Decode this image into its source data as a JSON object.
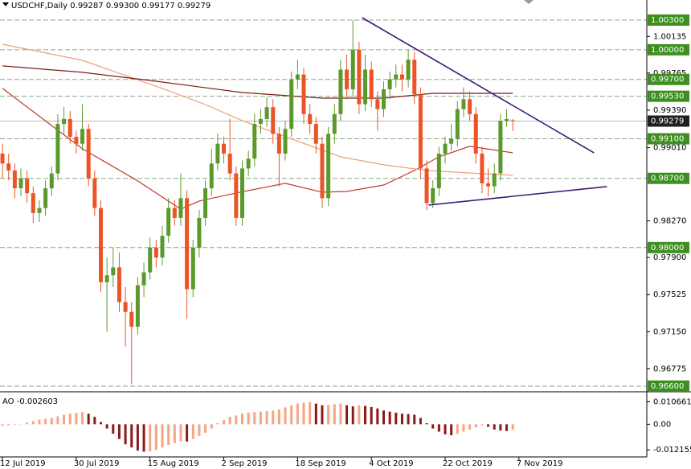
{
  "chart_data": {
    "type": "candlestick",
    "title": "USDCHF,Daily  0.99287 0.99300 0.99177 0.99279",
    "bull_color": "#5a9a2c",
    "bear_color": "#ea5427",
    "xlim": [
      -0.4,
      104.8
    ],
    "xticks": [
      {
        "value": 0,
        "label": "12 Jul 2019"
      },
      {
        "value": 12,
        "label": "30 Jul 2019"
      },
      {
        "value": 24,
        "label": "15 Aug 2019"
      },
      {
        "value": 36,
        "label": "2 Sep 2019"
      },
      {
        "value": 48,
        "label": "18 Sep 2019"
      },
      {
        "value": 60,
        "label": "4 Oct 2019"
      },
      {
        "value": 72,
        "label": "22 Oct 2019"
      },
      {
        "value": 84,
        "label": "7 Nov 2019"
      }
    ],
    "ylim": [
      0.96559,
      1.00503
    ],
    "yticks": [
      1.00135,
      0.99765,
      {
        "value": 0.9939,
        "label": "0.99390"
      },
      {
        "value": 0.9901,
        "label": "0.99010"
      },
      {
        "value": 0.9827,
        "label": "0.98270"
      },
      {
        "value": 0.979,
        "label": "0.97900"
      },
      0.97525,
      {
        "value": 0.9715,
        "label": "0.97150"
      },
      0.96775
    ],
    "levels": [
      {
        "value": 1.003,
        "label": "1.00300"
      },
      {
        "value": 1.0,
        "label": "1.00000"
      },
      {
        "value": 0.997,
        "label": "0.99700"
      },
      {
        "value": 0.9953,
        "label": "0.99530"
      },
      {
        "value": 0.991,
        "label": "0.99100"
      },
      {
        "value": 0.987,
        "label": "0.98700"
      },
      {
        "value": 0.98,
        "label": "0.98000"
      },
      {
        "value": 0.966,
        "label": "0.96600"
      }
    ],
    "level_color": "#3d8f1f",
    "price_line_color": "#b8b8b8",
    "ohlc": [
      [
        0.9895,
        0.9905,
        0.987,
        0.9885
      ],
      [
        0.9885,
        0.9895,
        0.9868,
        0.9878
      ],
      [
        0.9878,
        0.9885,
        0.985,
        0.986
      ],
      [
        0.986,
        0.988,
        0.9852,
        0.987
      ],
      [
        0.987,
        0.9878,
        0.9845,
        0.9855
      ],
      [
        0.9855,
        0.9862,
        0.9825,
        0.9835
      ],
      [
        0.9835,
        0.9848,
        0.9826,
        0.984
      ],
      [
        0.984,
        0.9868,
        0.9832,
        0.986
      ],
      [
        0.986,
        0.9882,
        0.9852,
        0.9875
      ],
      [
        0.9875,
        0.9935,
        0.9868,
        0.9925
      ],
      [
        0.9925,
        0.9942,
        0.9915,
        0.993
      ],
      [
        0.993,
        0.9938,
        0.9905,
        0.9912
      ],
      [
        0.9912,
        0.9918,
        0.9895,
        0.9905
      ],
      [
        0.9905,
        0.9945,
        0.9898,
        0.992
      ],
      [
        0.992,
        0.9925,
        0.9862,
        0.987
      ],
      [
        0.987,
        0.9878,
        0.9832,
        0.984
      ],
      [
        0.984,
        0.9848,
        0.9755,
        0.9765
      ],
      [
        0.9765,
        0.979,
        0.9715,
        0.9772
      ],
      [
        0.9772,
        0.98,
        0.976,
        0.978
      ],
      [
        0.978,
        0.9795,
        0.9735,
        0.9745
      ],
      [
        0.9745,
        0.976,
        0.97,
        0.9735
      ],
      [
        0.9735,
        0.9745,
        0.9662,
        0.972
      ],
      [
        0.972,
        0.977,
        0.9712,
        0.9762
      ],
      [
        0.9762,
        0.9785,
        0.975,
        0.9775
      ],
      [
        0.9775,
        0.981,
        0.9768,
        0.98
      ],
      [
        0.98,
        0.9808,
        0.978,
        0.979
      ],
      [
        0.979,
        0.9822,
        0.9782,
        0.9812
      ],
      [
        0.9812,
        0.985,
        0.9805,
        0.984
      ],
      [
        0.984,
        0.9848,
        0.9822,
        0.983
      ],
      [
        0.983,
        0.9875,
        0.9822,
        0.985
      ],
      [
        0.985,
        0.9858,
        0.9728,
        0.9758
      ],
      [
        0.9758,
        0.9808,
        0.975,
        0.98
      ],
      [
        0.98,
        0.9838,
        0.979,
        0.983
      ],
      [
        0.983,
        0.9868,
        0.9822,
        0.986
      ],
      [
        0.986,
        0.99,
        0.9852,
        0.9885
      ],
      [
        0.9885,
        0.9915,
        0.9878,
        0.9905
      ],
      [
        0.9905,
        0.9912,
        0.9885,
        0.9895
      ],
      [
        0.9895,
        0.993,
        0.9868,
        0.9875
      ],
      [
        0.9875,
        0.9882,
        0.9822,
        0.983
      ],
      [
        0.983,
        0.9888,
        0.9822,
        0.988
      ],
      [
        0.988,
        0.9898,
        0.9872,
        0.989
      ],
      [
        0.989,
        0.9935,
        0.9882,
        0.9925
      ],
      [
        0.9925,
        0.994,
        0.9915,
        0.993
      ],
      [
        0.993,
        0.9952,
        0.9922,
        0.9942
      ],
      [
        0.9942,
        0.995,
        0.9905,
        0.9915
      ],
      [
        0.9915,
        0.9922,
        0.9862,
        0.9895
      ],
      [
        0.9895,
        0.9928,
        0.9888,
        0.992
      ],
      [
        0.992,
        0.9978,
        0.9912,
        0.997
      ],
      [
        0.997,
        0.999,
        0.996,
        0.9975
      ],
      [
        0.9975,
        0.9982,
        0.9925,
        0.9935
      ],
      [
        0.9935,
        0.9945,
        0.9915,
        0.9925
      ],
      [
        0.9925,
        0.9932,
        0.9895,
        0.9905
      ],
      [
        0.9905,
        0.9912,
        0.984,
        0.985
      ],
      [
        0.985,
        0.9922,
        0.9842,
        0.9915
      ],
      [
        0.9915,
        0.9945,
        0.9905,
        0.9935
      ],
      [
        0.9935,
        0.999,
        0.9928,
        0.998
      ],
      [
        0.998,
        0.9995,
        0.995,
        0.996
      ],
      [
        0.996,
        1.003,
        0.9952,
        1.0
      ],
      [
        1.0,
        1.0008,
        0.9935,
        0.9945
      ],
      [
        0.9945,
        0.9995,
        0.9938,
        0.998
      ],
      [
        0.998,
        0.9988,
        0.9942,
        0.995
      ],
      [
        0.995,
        0.9958,
        0.9918,
        0.994
      ],
      [
        0.994,
        0.9968,
        0.9932,
        0.996
      ],
      [
        0.996,
        0.9978,
        0.995,
        0.997
      ],
      [
        0.997,
        0.9985,
        0.9962,
        0.9975
      ],
      [
        0.9975,
        0.9985,
        0.9958,
        0.997
      ],
      [
        0.997,
        1.0,
        0.9962,
        0.999
      ],
      [
        0.999,
        0.9998,
        0.9945,
        0.9955
      ],
      [
        0.9955,
        0.9962,
        0.987,
        0.988
      ],
      [
        0.988,
        0.9888,
        0.9838,
        0.9845
      ],
      [
        0.9845,
        0.9868,
        0.984,
        0.986
      ],
      [
        0.986,
        0.9902,
        0.9852,
        0.9895
      ],
      [
        0.9895,
        0.9912,
        0.9885,
        0.9905
      ],
      [
        0.9905,
        0.9925,
        0.9898,
        0.991
      ],
      [
        0.991,
        0.9948,
        0.9902,
        0.994
      ],
      [
        0.994,
        0.9962,
        0.9932,
        0.995
      ],
      [
        0.995,
        0.9958,
        0.9928,
        0.9935
      ],
      [
        0.9935,
        0.9942,
        0.9885,
        0.9895
      ],
      [
        0.9895,
        0.9902,
        0.9855,
        0.9865
      ],
      [
        0.9865,
        0.988,
        0.9852,
        0.9862
      ],
      [
        0.9862,
        0.9885,
        0.9855,
        0.9875
      ],
      [
        0.9875,
        0.9935,
        0.9868,
        0.9928
      ],
      [
        0.9928,
        0.994,
        0.9922,
        0.993
      ],
      [
        0.99287,
        0.993,
        0.99177,
        0.99279
      ]
    ],
    "moving_averages": [
      {
        "color": "#c0392b",
        "x": [
          0,
          13,
          22,
          29,
          32,
          38,
          46,
          52,
          56,
          62,
          67,
          71,
          76,
          83
        ],
        "values": [
          0.99609,
          0.98999,
          0.98674,
          0.98389,
          0.98471,
          0.98552,
          0.9865,
          0.9856,
          0.98568,
          0.98633,
          0.9878,
          0.98918,
          0.99024,
          0.98958
        ]
      },
      {
        "color": "#f0a07a",
        "x": [
          0,
          13,
          26,
          33,
          39,
          46,
          55,
          62,
          69,
          76,
          83
        ],
        "values": [
          1.00056,
          0.99893,
          0.99609,
          0.99446,
          0.99284,
          0.99121,
          0.98918,
          0.98837,
          0.9878,
          0.98755,
          0.98731
        ]
      },
      {
        "color": "#7b1c12",
        "x": [
          0,
          13,
          24,
          39,
          52,
          62,
          70,
          83
        ],
        "values": [
          0.99837,
          0.99772,
          0.9969,
          0.99568,
          0.99511,
          0.99511,
          0.9956,
          0.9956
        ]
      }
    ],
    "trendlines": [
      {
        "color": "#3c1a78",
        "x": [
          58.5,
          96.2
        ],
        "values": [
          1.00324,
          0.98959
        ]
      },
      {
        "color": "#3c1a78",
        "x": [
          69.3,
          98.3
        ],
        "values": [
          0.9843,
          0.98617
        ]
      }
    ],
    "ao": {
      "title": "AO -0.002603",
      "up_color": "#f4a582",
      "down_color": "#8b1a1a",
      "ylim": [
        -0.0155,
        0.0135
      ],
      "yticks": [
        0.010661,
        {
          "value": 0,
          "label": "0.00"
        },
        -0.012155
      ],
      "values": [
        -0.0008,
        -0.0006,
        -0.0003,
        0.0002,
        0.0008,
        0.0015,
        0.0022,
        0.0026,
        0.003,
        0.0038,
        0.0045,
        0.005,
        0.0054,
        0.0058,
        0.005,
        0.0035,
        0.001,
        -0.002,
        -0.0045,
        -0.007,
        -0.0095,
        -0.011,
        -0.0125,
        -0.013,
        -0.0128,
        -0.0122,
        -0.011,
        -0.0098,
        -0.009,
        -0.008,
        -0.0082,
        -0.007,
        -0.0055,
        -0.004,
        -0.002,
        0.0005,
        0.002,
        0.0035,
        0.0042,
        0.005,
        0.0055,
        0.0058,
        0.006,
        0.0062,
        0.0065,
        0.007,
        0.008,
        0.009,
        0.0098,
        0.0102,
        0.0105,
        0.0098,
        0.009,
        0.0092,
        0.0095,
        0.0098,
        0.009,
        0.0085,
        0.009,
        0.0087,
        0.0082,
        0.0075,
        0.0065,
        0.006,
        0.0055,
        0.005,
        0.0048,
        0.0045,
        0.003,
        0.0005,
        -0.002,
        -0.0035,
        -0.0048,
        -0.0052,
        -0.0045,
        -0.0035,
        -0.0025,
        -0.0015,
        -0.0005,
        -0.0012,
        -0.0025,
        -0.003,
        -0.0032,
        -0.002603
      ]
    }
  }
}
